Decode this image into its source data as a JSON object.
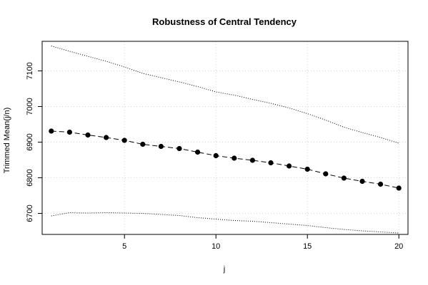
{
  "chart_data": {
    "type": "line",
    "title": "Robustness of Central Tendency",
    "xlabel": "j",
    "ylabel": "Trimmed Mean(j/n)",
    "xlim": [
      0.5,
      20.5
    ],
    "ylim": [
      6641,
      7183
    ],
    "x_ticks": [
      5,
      10,
      15,
      20
    ],
    "x_tick_labels": [
      "5",
      "10",
      "15",
      "20"
    ],
    "y_ticks": [
      6700,
      6800,
      6900,
      7000,
      7100
    ],
    "y_tick_labels": [
      "6700",
      "6800",
      "6900",
      "7000",
      "7100"
    ],
    "grid": true,
    "legend": "none",
    "x": [
      1,
      2,
      3,
      4,
      5,
      6,
      7,
      8,
      9,
      10,
      11,
      12,
      13,
      14,
      15,
      16,
      17,
      18,
      19,
      20
    ],
    "series": [
      {
        "style": "dashed-line-with-filled-points",
        "values": [
          6931,
          6928,
          6920,
          6913,
          6905,
          6894,
          6888,
          6882,
          6872,
          6862,
          6855,
          6849,
          6842,
          6833,
          6824,
          6811,
          6799,
          6790,
          6782,
          6771
        ]
      },
      {
        "style": "dotted-line-upper-band",
        "values": [
          7170,
          7155,
          7141,
          7127,
          7111,
          7093,
          7081,
          7069,
          7056,
          7041,
          7032,
          7020,
          7009,
          6996,
          6980,
          6962,
          6942,
          6927,
          6913,
          6897
        ]
      },
      {
        "style": "dotted-line-lower-band",
        "values": [
          6693,
          6702,
          6701,
          6702,
          6701,
          6700,
          6697,
          6694,
          6688,
          6684,
          6680,
          6678,
          6674,
          6670,
          6666,
          6660,
          6655,
          6651,
          6648,
          6645
        ]
      }
    ],
    "colors": {
      "line": "#000000",
      "grid": "#d3d3d3",
      "frame": "#000000"
    }
  }
}
